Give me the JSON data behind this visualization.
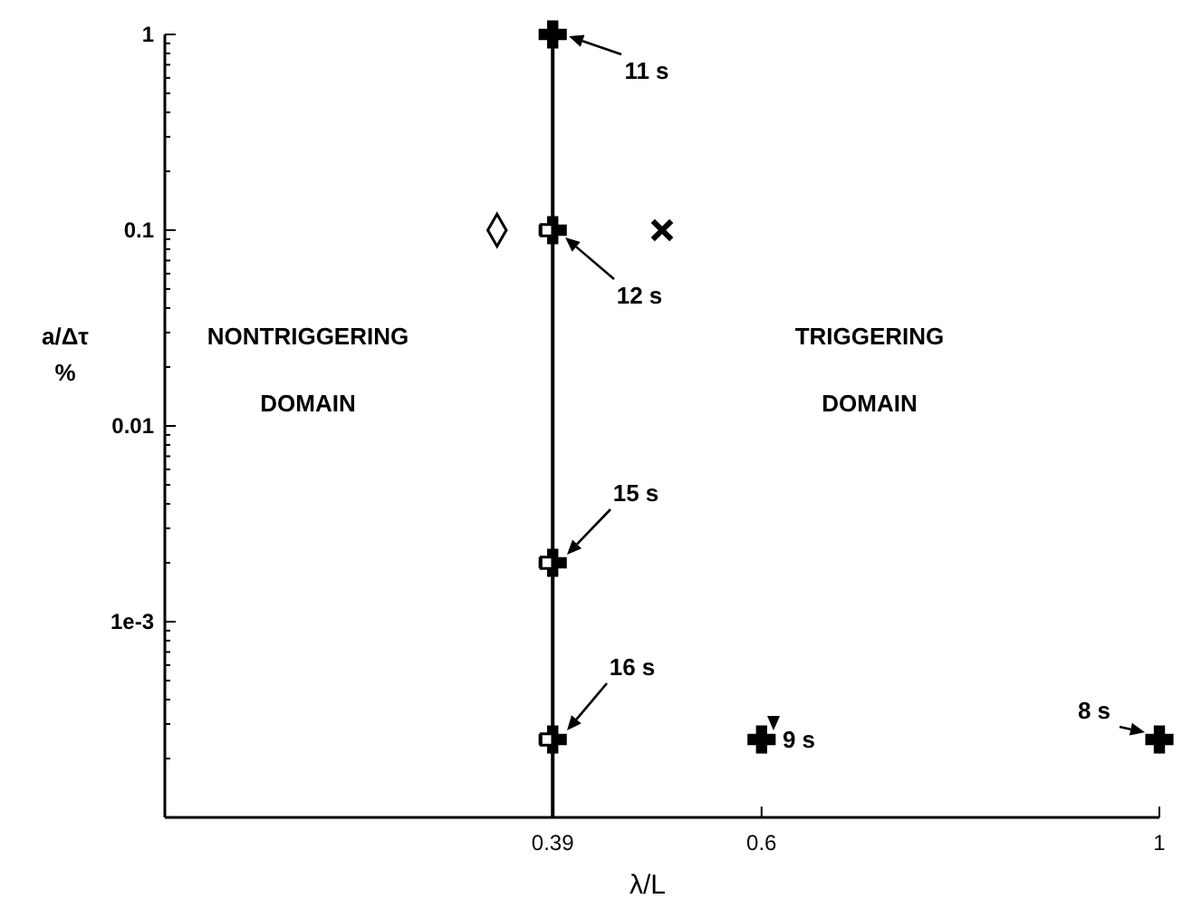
{
  "chart_data": {
    "type": "scatter",
    "xlabel": "λ/L",
    "ylabel": "a/Δτ\n%",
    "xlim": [
      0,
      1
    ],
    "xticks": [
      0.39,
      0.6,
      1
    ],
    "ylim": [
      0.0001,
      1
    ],
    "log": "y",
    "yticks": [
      1,
      0.1,
      0.01,
      {
        "value": 0.001,
        "label": "1e-3"
      },
      {
        "value": 0.9,
        "label": null
      },
      {
        "value": 0.8,
        "label": null
      },
      {
        "value": 0.7,
        "label": null
      },
      {
        "value": 0.6,
        "label": null
      },
      {
        "value": 0.5,
        "label": null
      },
      {
        "value": 0.4,
        "label": null
      },
      {
        "value": 0.3,
        "label": null
      },
      {
        "value": 0.2,
        "label": null
      },
      {
        "value": 0.09,
        "label": null
      },
      {
        "value": 0.08,
        "label": null
      },
      {
        "value": 0.07,
        "label": null
      },
      {
        "value": 0.06,
        "label": null
      },
      {
        "value": 0.05,
        "label": null
      },
      {
        "value": 0.04,
        "label": null
      },
      {
        "value": 0.03,
        "label": null
      },
      {
        "value": 0.02,
        "label": null
      },
      {
        "value": 0.009,
        "label": null
      },
      {
        "value": 0.008,
        "label": null
      },
      {
        "value": 0.007,
        "label": null
      },
      {
        "value": 0.006,
        "label": null
      },
      {
        "value": 0.005,
        "label": null
      },
      {
        "value": 0.004,
        "label": null
      },
      {
        "value": 0.003,
        "label": null
      },
      {
        "value": 0.002,
        "label": null
      },
      {
        "value": 0.0009,
        "label": null
      },
      {
        "value": 0.0008,
        "label": null
      },
      {
        "value": 0.0007,
        "label": null
      },
      {
        "value": 0.0006,
        "label": null
      },
      {
        "value": 0.0005,
        "label": null
      },
      {
        "value": 0.0004,
        "label": null
      },
      {
        "value": 0.0003,
        "label": null
      },
      {
        "value": 0.0002,
        "label": null
      }
    ],
    "ref_lines": [
      {
        "axis": "x",
        "value": 0.39,
        "color": "#000000"
      }
    ],
    "series": [
      {
        "color": "#000000",
        "marker": "cross",
        "x": [
          0.39,
          0.39,
          0.39,
          0.39,
          0.6,
          1
        ],
        "values": [
          1,
          0.1,
          0.002,
          0.00025,
          0.00025,
          0.00025
        ]
      },
      {
        "color": "#000000",
        "marker": "square",
        "x": [
          0.384,
          0.384,
          0.384
        ],
        "values": [
          0.1,
          0.002,
          0.00025
        ]
      },
      {
        "color": "#000000",
        "marker": "diamond",
        "x": [
          0.334
        ],
        "values": [
          0.1
        ]
      },
      {
        "color": "#000000",
        "marker": "x",
        "x": [
          0.5
        ],
        "values": [
          0.1
        ]
      }
    ],
    "annotations": [
      "11 s",
      "12 s",
      "15 s",
      "16 s",
      "9 s",
      "8 s",
      "NONTRIGGERING\nDOMAIN",
      "TRIGGERING\nDOMAIN"
    ]
  }
}
